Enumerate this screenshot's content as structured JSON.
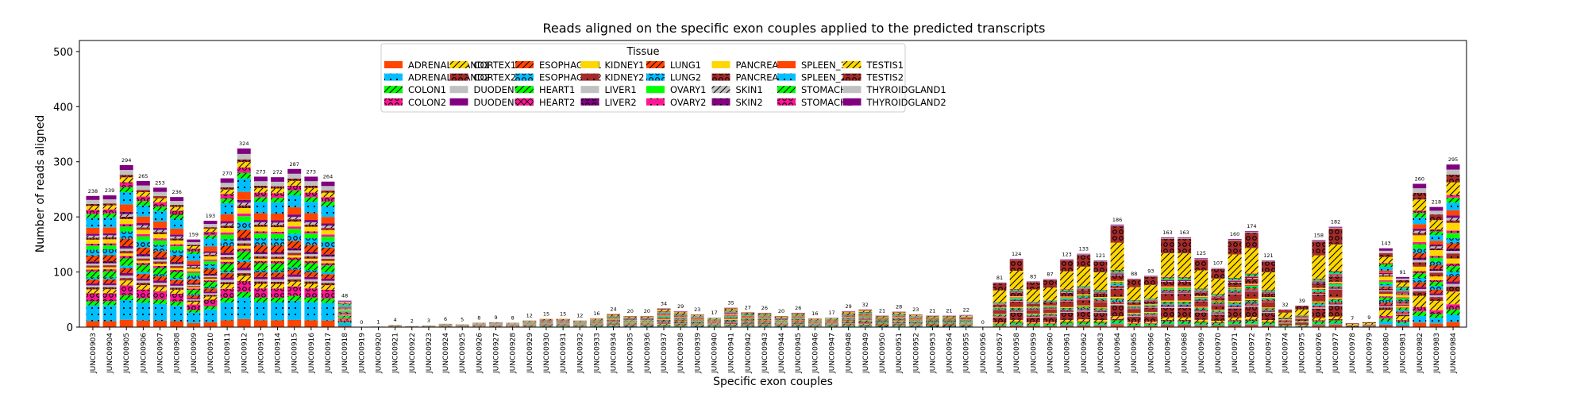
{
  "chart_data": {
    "type": "bar",
    "stacked": true,
    "title": "Reads aligned on the specific exon couples applied to the predicted transcripts",
    "xlabel": "Specific exon couples",
    "ylabel": "Number of reads aligned",
    "ylim": [
      0,
      520
    ],
    "yticks": [
      0,
      100,
      200,
      300,
      400,
      500
    ],
    "grid": false,
    "legend": {
      "title": "Tissue",
      "placement": "top-center",
      "columns": 8
    },
    "categories": [
      "JUNC00903",
      "JUNC00904",
      "JUNC00905",
      "JUNC00906",
      "JUNC00907",
      "JUNC00908",
      "JUNC00909",
      "JUNC00910",
      "JUNC00911",
      "JUNC00912",
      "JUNC00913",
      "JUNC00914",
      "JUNC00915",
      "JUNC00916",
      "JUNC00917",
      "JUNC00918",
      "JUNC00919",
      "JUNC00920",
      "JUNC00921",
      "JUNC00922",
      "JUNC00923",
      "JUNC00924",
      "JUNC00925",
      "JUNC00926",
      "JUNC00927",
      "JUNC00928",
      "JUNC00929",
      "JUNC00930",
      "JUNC00931",
      "JUNC00932",
      "JUNC00933",
      "JUNC00934",
      "JUNC00935",
      "JUNC00936",
      "JUNC00937",
      "JUNC00938",
      "JUNC00939",
      "JUNC00940",
      "JUNC00941",
      "JUNC00942",
      "JUNC00943",
      "JUNC00944",
      "JUNC00945",
      "JUNC00946",
      "JUNC00947",
      "JUNC00948",
      "JUNC00949",
      "JUNC00950",
      "JUNC00951",
      "JUNC00952",
      "JUNC00953",
      "JUNC00954",
      "JUNC00955",
      "JUNC00956",
      "JUNC00957",
      "JUNC00958",
      "JUNC00959",
      "JUNC00960",
      "JUNC00961",
      "JUNC00962",
      "JUNC00963",
      "JUNC00964",
      "JUNC00965",
      "JUNC00966",
      "JUNC00967",
      "JUNC00968",
      "JUNC00969",
      "JUNC00970",
      "JUNC00971",
      "JUNC00972",
      "JUNC00973",
      "JUNC00974",
      "JUNC00975",
      "JUNC00976",
      "JUNC00977",
      "JUNC00978",
      "JUNC00979",
      "JUNC00980",
      "JUNC00981",
      "JUNC00982",
      "JUNC00983",
      "JUNC00984"
    ],
    "totals": [
      238,
      239,
      294,
      265,
      253,
      236,
      159,
      193,
      270,
      324,
      273,
      272,
      287,
      273,
      264,
      48,
      0,
      1,
      4,
      2,
      3,
      6,
      5,
      8,
      9,
      8,
      12,
      15,
      15,
      12,
      16,
      24,
      20,
      20,
      34,
      29,
      23,
      17,
      35,
      27,
      26,
      20,
      26,
      16,
      17,
      29,
      32,
      21,
      28,
      23,
      21,
      21,
      22,
      0,
      81,
      124,
      83,
      87,
      123,
      133,
      121,
      186,
      88,
      93,
      163,
      163,
      125,
      107,
      160,
      174,
      121,
      32,
      39,
      158,
      182,
      7,
      9,
      143,
      91,
      260,
      218,
      295
    ],
    "series": [
      {
        "name": "ADRENALGLAND1",
        "color": "#ff4500",
        "hatch": "none"
      },
      {
        "name": "ADRENALGLAND2",
        "color": "#00bfff",
        "hatch": "dots"
      },
      {
        "name": "COLON1",
        "color": "#00ff00",
        "hatch": "slash"
      },
      {
        "name": "COLON2",
        "color": "#ff1493",
        "hatch": "circle"
      },
      {
        "name": "CORTEX1",
        "color": "#ffd700",
        "hatch": "slash"
      },
      {
        "name": "CORTEX2",
        "color": "#a52a2a",
        "hatch": "circle"
      },
      {
        "name": "DUODENUM1",
        "color": "#c0c0c0",
        "hatch": "none"
      },
      {
        "name": "DUODENUM2",
        "color": "#800080",
        "hatch": "none"
      },
      {
        "name": "ESOPHAGUS1",
        "color": "#ff4500",
        "hatch": "slash"
      },
      {
        "name": "ESOPHAGUS2",
        "color": "#00bfff",
        "hatch": "circle"
      },
      {
        "name": "HEART1",
        "color": "#00ff00",
        "hatch": "slash"
      },
      {
        "name": "HEART2",
        "color": "#ff1493",
        "hatch": "x"
      },
      {
        "name": "KIDNEY1",
        "color": "#ffd700",
        "hatch": "none"
      },
      {
        "name": "KIDNEY2",
        "color": "#a52a2a",
        "hatch": "dots"
      },
      {
        "name": "LIVER1",
        "color": "#c0c0c0",
        "hatch": "none"
      },
      {
        "name": "LIVER2",
        "color": "#800080",
        "hatch": "circle"
      },
      {
        "name": "LUNG1",
        "color": "#ff4500",
        "hatch": "slash"
      },
      {
        "name": "LUNG2",
        "color": "#00bfff",
        "hatch": "circle"
      },
      {
        "name": "OVARY1",
        "color": "#00ff00",
        "hatch": "none"
      },
      {
        "name": "OVARY2",
        "color": "#ff1493",
        "hatch": "dots"
      },
      {
        "name": "PANCREAS1",
        "color": "#ffd700",
        "hatch": "none"
      },
      {
        "name": "PANCREAS2",
        "color": "#a52a2a",
        "hatch": "circle"
      },
      {
        "name": "SKIN1",
        "color": "#c0c0c0",
        "hatch": "slash"
      },
      {
        "name": "SKIN2",
        "color": "#800080",
        "hatch": "dots"
      },
      {
        "name": "SPLEEN_1",
        "color": "#ff4500",
        "hatch": "none"
      },
      {
        "name": "SPLEEN_2",
        "color": "#00bfff",
        "hatch": "dots"
      },
      {
        "name": "STOMACH1",
        "color": "#00ff00",
        "hatch": "slash"
      },
      {
        "name": "STOMACH2",
        "color": "#ff1493",
        "hatch": "circle"
      },
      {
        "name": "TESTIS1",
        "color": "#ffd700",
        "hatch": "slash"
      },
      {
        "name": "TESTIS2",
        "color": "#a52a2a",
        "hatch": "circle"
      },
      {
        "name": "THYROIDGLAND1",
        "color": "#c0c0c0",
        "hatch": "none"
      },
      {
        "name": "THYROIDGLAND2",
        "color": "#800080",
        "hatch": "none"
      }
    ]
  }
}
